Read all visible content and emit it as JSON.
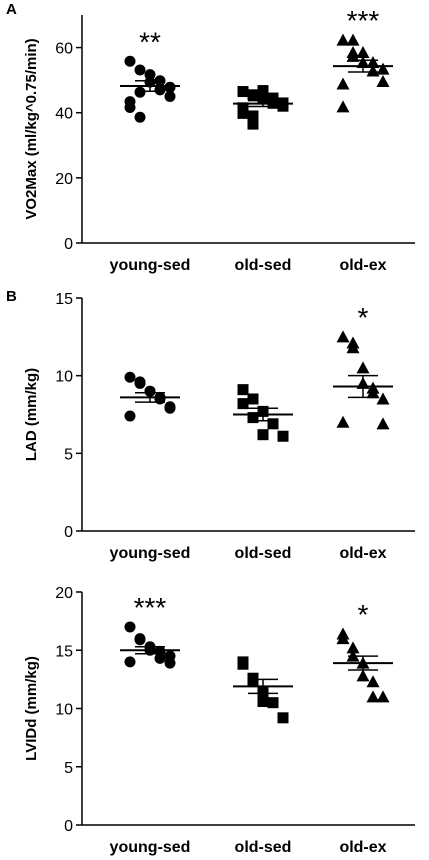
{
  "chart_data": [
    {
      "type": "scatter",
      "panel_label": "A",
      "ylabel": "VO2Max (ml/kg^0.75/min)",
      "ylim": [
        0,
        70
      ],
      "yticks": [
        "0",
        "20",
        "40",
        "60"
      ],
      "categories": [
        "young-sed",
        "old-sed",
        "old-ex"
      ],
      "groups": [
        {
          "category": "young-sed",
          "marker": "circle",
          "mean": 48.2,
          "sem": 1.6,
          "sig": "**",
          "values": [
            55.8,
            53.1,
            49.4,
            47.0,
            45.0,
            41.6,
            38.6,
            51.7,
            49.8,
            47.8,
            43.4,
            46.3
          ]
        },
        {
          "category": "old-sed",
          "marker": "square",
          "mean": 42.8,
          "sem": 0.9,
          "sig": "",
          "values": [
            46.5,
            45.5,
            44.2,
            42.9,
            42.0,
            39.8,
            36.5,
            46.5,
            44.5,
            43.0,
            41.5,
            39.0,
            46.8,
            44.3
          ]
        },
        {
          "category": "old-ex",
          "marker": "triangle",
          "mean": 54.3,
          "sem": 1.8,
          "sig": "***",
          "values": [
            62.3,
            58.5,
            55.4,
            52.8,
            49.6,
            41.8,
            62.3,
            58.5,
            55.4,
            53.4,
            48.8,
            57.3
          ]
        }
      ]
    },
    {
      "type": "scatter",
      "panel_label": "B",
      "ylabel": "LAD (mm/kg)",
      "ylim": [
        0,
        15
      ],
      "yticks": [
        "0",
        "5",
        "10",
        "15"
      ],
      "categories": [
        "young-sed",
        "old-sed",
        "old-ex"
      ],
      "groups": [
        {
          "category": "young-sed",
          "marker": "circle",
          "mean": 8.6,
          "sem": 0.3,
          "sig": "",
          "values": [
            9.9,
            9.6,
            9.0,
            8.6,
            8.0,
            7.4,
            9.5,
            9.0,
            8.5,
            7.9
          ]
        },
        {
          "category": "old-sed",
          "marker": "square",
          "mean": 7.5,
          "sem": 0.4,
          "sig": "",
          "values": [
            9.1,
            8.5,
            7.7,
            6.9,
            6.1,
            8.2,
            7.3,
            6.2
          ]
        },
        {
          "category": "old-ex",
          "marker": "triangle",
          "mean": 9.3,
          "sem": 0.7,
          "sig": "*",
          "values": [
            12.5,
            11.8,
            9.5,
            9.2,
            8.5,
            7.0,
            12.1,
            10.5,
            8.9,
            6.9
          ]
        }
      ]
    },
    {
      "type": "scatter",
      "panel_label": "",
      "ylabel": "LVIDd (mm/kg)",
      "ylim": [
        0,
        20
      ],
      "yticks": [
        "0",
        "5",
        "10",
        "15",
        "20"
      ],
      "categories": [
        "young-sed",
        "old-sed",
        "old-ex"
      ],
      "groups": [
        {
          "category": "young-sed",
          "marker": "circle",
          "mean": 15.0,
          "sem": 0.3,
          "sig": "***",
          "values": [
            17.0,
            16.0,
            15.3,
            14.9,
            14.5,
            14.0,
            15.9,
            15.0,
            14.3,
            13.9
          ]
        },
        {
          "category": "old-sed",
          "marker": "square",
          "mean": 11.9,
          "sem": 0.6,
          "sig": "",
          "values": [
            14.0,
            12.4,
            11.4,
            10.5,
            9.2,
            13.8,
            12.6,
            10.6
          ]
        },
        {
          "category": "old-ex",
          "marker": "triangle",
          "mean": 13.9,
          "sem": 0.6,
          "sig": "*",
          "values": [
            16.4,
            15.2,
            13.9,
            12.3,
            11.0,
            16.0,
            14.5,
            12.8,
            11.0
          ]
        }
      ]
    }
  ]
}
